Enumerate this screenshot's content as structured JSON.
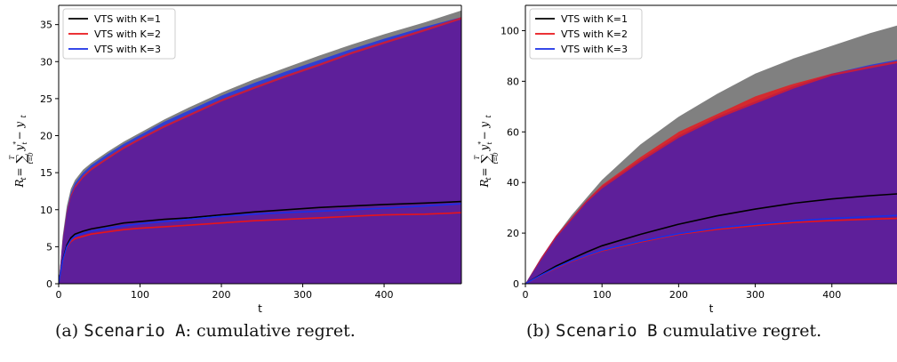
{
  "chart_data": [
    {
      "type": "area",
      "xlabel": "t",
      "ylabel_math": {
        "R": "R",
        "t": "t",
        "eq": " = ",
        "sup": "T",
        "sum": "∑",
        "sub": "t=0",
        "y": "y",
        "ystar": "t",
        "star": "*",
        "minus": " − y",
        "tsub": "t"
      },
      "xlim": [
        0,
        495
      ],
      "ylim": [
        0,
        37.6
      ],
      "xticks": [
        0,
        100,
        200,
        300,
        400
      ],
      "yticks": [
        0,
        5,
        10,
        15,
        20,
        25,
        30,
        35
      ],
      "legend_position": "top-left",
      "grid": false,
      "series": [
        {
          "name": "VTS with K=1",
          "color": "#000000",
          "band_color": "#808080",
          "x": [
            0,
            5,
            10,
            15,
            20,
            30,
            40,
            60,
            80,
            100,
            130,
            160,
            200,
            240,
            280,
            320,
            360,
            400,
            450,
            495
          ],
          "mean": [
            0,
            3.2,
            5.2,
            6.2,
            6.7,
            7.1,
            7.4,
            7.8,
            8.2,
            8.4,
            8.7,
            8.9,
            9.3,
            9.7,
            10.0,
            10.3,
            10.5,
            10.7,
            10.9,
            11.1
          ],
          "upper": [
            0,
            6.5,
            10.5,
            12.8,
            14.0,
            15.4,
            16.3,
            17.8,
            19.2,
            20.4,
            22.2,
            23.8,
            25.8,
            27.6,
            29.2,
            30.8,
            32.3,
            33.7,
            35.3,
            36.9
          ]
        },
        {
          "name": "VTS with K=2",
          "color": "#e8141a",
          "band_color": "#e8141a",
          "x": [
            0,
            5,
            10,
            15,
            20,
            30,
            40,
            60,
            80,
            100,
            130,
            160,
            200,
            240,
            280,
            320,
            360,
            400,
            450,
            495
          ],
          "mean": [
            0,
            3.0,
            4.9,
            5.7,
            6.1,
            6.4,
            6.7,
            7.0,
            7.3,
            7.5,
            7.7,
            7.9,
            8.2,
            8.5,
            8.7,
            8.9,
            9.1,
            9.3,
            9.4,
            9.6
          ],
          "upper": [
            0,
            6.0,
            9.8,
            12.0,
            13.2,
            14.6,
            15.6,
            17.1,
            18.5,
            19.7,
            21.4,
            22.9,
            24.9,
            26.6,
            28.2,
            29.7,
            31.3,
            32.7,
            34.4,
            36.0
          ]
        },
        {
          "name": "VTS with K=3",
          "color": "#1a2fe6",
          "band_color": "#1a2fe6",
          "x": [
            0,
            5,
            10,
            15,
            20,
            30,
            40,
            60,
            80,
            100,
            130,
            160,
            200,
            240,
            280,
            320,
            360,
            400,
            450,
            495
          ],
          "mean": [
            0,
            3.1,
            5.0,
            5.9,
            6.4,
            6.8,
            7.1,
            7.5,
            7.8,
            8.1,
            8.4,
            8.7,
            9.1,
            9.4,
            9.6,
            9.8,
            10.0,
            10.2,
            10.5,
            10.8
          ],
          "upper": [
            0,
            6.2,
            10.0,
            12.3,
            13.6,
            15.0,
            16.0,
            17.5,
            18.9,
            20.1,
            21.9,
            23.4,
            25.4,
            27.1,
            28.7,
            30.2,
            31.7,
            33.1,
            34.7,
            36.0
          ]
        }
      ]
    },
    {
      "type": "area",
      "xlabel": "t",
      "ylabel_math": {
        "R": "R",
        "t": "t",
        "eq": " = ",
        "sup": "T",
        "sum": "∑",
        "sub": "t=0",
        "y": "y",
        "ystar": "t",
        "star": "*",
        "minus": " − y",
        "tsub": "t"
      },
      "xlim": [
        0,
        485
      ],
      "ylim": [
        0,
        110
      ],
      "xticks": [
        0,
        100,
        200,
        300,
        400
      ],
      "yticks": [
        0,
        20,
        40,
        60,
        80,
        100
      ],
      "legend_position": "top-left",
      "grid": false,
      "series": [
        {
          "name": "VTS with K=1",
          "color": "#000000",
          "band_color": "#808080",
          "x": [
            0,
            20,
            40,
            60,
            80,
            100,
            150,
            200,
            250,
            300,
            350,
            400,
            450,
            485
          ],
          "mean": [
            0,
            3.5,
            7.0,
            9.8,
            12.5,
            15.0,
            19.5,
            23.5,
            26.8,
            29.5,
            31.8,
            33.5,
            34.8,
            35.5
          ],
          "upper": [
            0,
            10,
            19,
            27,
            34,
            41,
            55,
            66,
            75,
            83,
            89,
            94,
            99,
            102
          ]
        },
        {
          "name": "VTS with K=2",
          "color": "#e8141a",
          "band_color": "#e8141a",
          "x": [
            0,
            20,
            40,
            60,
            80,
            100,
            150,
            200,
            250,
            300,
            350,
            400,
            450,
            485
          ],
          "mean": [
            0,
            3.2,
            6.2,
            8.8,
            11.0,
            13.0,
            16.5,
            19.5,
            21.5,
            23.0,
            24.2,
            25.0,
            25.5,
            25.8
          ],
          "upper": [
            0,
            10,
            19,
            26,
            33,
            39,
            50,
            60,
            67,
            74,
            79,
            83,
            86,
            88
          ]
        },
        {
          "name": "VTS with K=3",
          "color": "#1a2fe6",
          "band_color": "#1a2fe6",
          "x": [
            0,
            20,
            40,
            60,
            80,
            100,
            150,
            200,
            250,
            300,
            350,
            400,
            450,
            485
          ],
          "mean": [
            0,
            3.3,
            6.4,
            9.0,
            11.2,
            13.3,
            16.8,
            19.8,
            22.0,
            23.5,
            24.8,
            25.8,
            26.5,
            27.0
          ],
          "upper": [
            0,
            10,
            19,
            26,
            33,
            38.5,
            49,
            58.5,
            66,
            72,
            78,
            83,
            86.5,
            88.5
          ]
        }
      ]
    }
  ],
  "captions": {
    "a": {
      "label": "(a) ",
      "mono": "Scenario A",
      "rest": ": cumulative regret."
    },
    "b": {
      "label": "(b) ",
      "mono": "Scenario B",
      "rest": " cumulative regret."
    }
  }
}
